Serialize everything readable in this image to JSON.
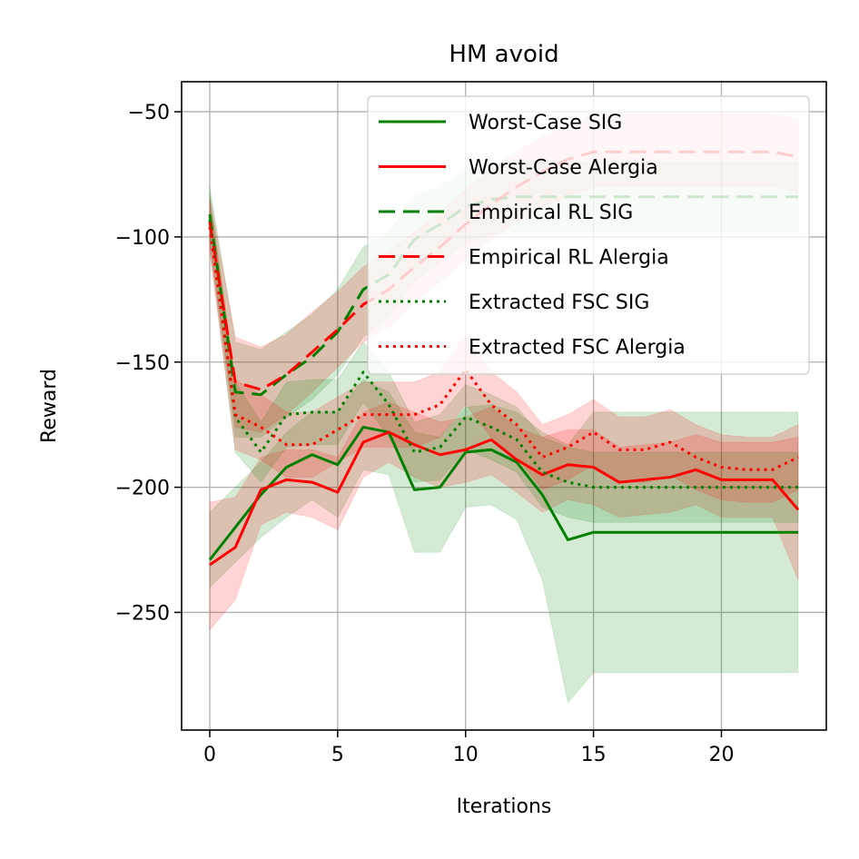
{
  "chart_data": {
    "type": "line",
    "title": "HM avoid",
    "xlabel": "Iterations",
    "ylabel": "Reward",
    "xlim": [
      -1.1,
      24.1
    ],
    "ylim": [
      -297,
      -38
    ],
    "xticks": [
      0,
      5,
      10,
      15,
      20
    ],
    "yticks": [
      -50,
      -100,
      -150,
      -200,
      -250
    ],
    "tick_labels_x": [
      "0",
      "5",
      "10",
      "15",
      "20"
    ],
    "tick_labels_y": [
      "−50",
      "−100",
      "−150",
      "−200",
      "−250"
    ],
    "grid": true,
    "legend_position": "top-right",
    "x": [
      0,
      1,
      2,
      3,
      4,
      5,
      6,
      7,
      8,
      9,
      10,
      11,
      12,
      13,
      14,
      15,
      16,
      17,
      18,
      19,
      20,
      21,
      22,
      23
    ],
    "series": [
      {
        "name": "Worst-Case SIG",
        "color": "#008000",
        "style": "solid",
        "values": [
          -229,
          -216,
          -203,
          -192,
          -187,
          -191,
          -176,
          -178,
          -201,
          -200,
          -186,
          -185,
          -190,
          -203,
          -221,
          -218,
          -218,
          -218,
          -218,
          -218,
          -218,
          -218,
          -218,
          -218
        ],
        "lower": [
          -240,
          -230,
          -220,
          -212,
          -205,
          -212,
          -193,
          -195,
          -226,
          -226,
          -208,
          -207,
          -213,
          -237,
          -286,
          -274,
          -274,
          -274,
          -274,
          -274,
          -274,
          -274,
          -274,
          -274
        ],
        "upper": [
          -210,
          -200,
          -190,
          -178,
          -170,
          -170,
          -157,
          -162,
          -178,
          -180,
          -168,
          -167,
          -170,
          -178,
          -183,
          -170,
          -170,
          -170,
          -170,
          -170,
          -170,
          -170,
          -170,
          -170
        ]
      },
      {
        "name": "Worst-Case Alergia",
        "color": "#ff0000",
        "style": "solid",
        "values": [
          -231,
          -224,
          -201,
          -197,
          -198,
          -202,
          -182,
          -178,
          -183,
          -187,
          -185,
          -181,
          -189,
          -195,
          -191,
          -192,
          -198,
          -197,
          -196,
          -193,
          -197,
          -197,
          -197,
          -209
        ],
        "lower": [
          -257,
          -245,
          -215,
          -210,
          -212,
          -217,
          -196,
          -190,
          -196,
          -200,
          -198,
          -195,
          -202,
          -210,
          -205,
          -207,
          -212,
          -211,
          -210,
          -207,
          -212,
          -212,
          -212,
          -237
        ],
        "upper": [
          -206,
          -204,
          -188,
          -185,
          -185,
          -188,
          -170,
          -166,
          -170,
          -174,
          -172,
          -168,
          -176,
          -180,
          -177,
          -177,
          -184,
          -183,
          -182,
          -179,
          -182,
          -182,
          -182,
          -180
        ]
      },
      {
        "name": "Empirical RL SIG",
        "color": "#008000",
        "style": "dashed",
        "values": [
          -91,
          -162,
          -163,
          -155,
          -148,
          -138,
          -121,
          -115,
          -101,
          -95,
          -88,
          -85,
          -84,
          -84,
          -84,
          -84,
          -84,
          -84,
          -84,
          -84,
          -84,
          -84,
          -84,
          -84
        ],
        "lower": [
          -100,
          -180,
          -180,
          -172,
          -165,
          -155,
          -140,
          -132,
          -118,
          -110,
          -103,
          -99,
          -98,
          -98,
          -98,
          -98,
          -98,
          -98,
          -98,
          -98,
          -98,
          -98,
          -98,
          -98
        ],
        "upper": [
          -80,
          -142,
          -145,
          -138,
          -131,
          -121,
          -104,
          -98,
          -84,
          -80,
          -73,
          -71,
          -70,
          -70,
          -70,
          -70,
          -70,
          -70,
          -70,
          -70,
          -70,
          -70,
          -70,
          -70
        ]
      },
      {
        "name": "Empirical RL Alergia",
        "color": "#ff0000",
        "style": "dashed",
        "values": [
          -94,
          -158,
          -161,
          -155,
          -146,
          -137,
          -127,
          -121,
          -112,
          -104,
          -95,
          -87,
          -80,
          -74,
          -69,
          -66,
          -66,
          -66,
          -66,
          -66,
          -66,
          -66,
          -66,
          -68
        ],
        "lower": [
          -104,
          -176,
          -178,
          -171,
          -162,
          -152,
          -142,
          -136,
          -126,
          -118,
          -109,
          -101,
          -94,
          -88,
          -84,
          -80,
          -80,
          -80,
          -80,
          -80,
          -80,
          -80,
          -80,
          -82
        ],
        "upper": [
          -84,
          -140,
          -144,
          -139,
          -130,
          -122,
          -112,
          -106,
          -98,
          -90,
          -81,
          -73,
          -66,
          -60,
          -55,
          -51,
          -51,
          -51,
          -51,
          -51,
          -51,
          -51,
          -51,
          -53
        ]
      },
      {
        "name": "Extracted FSC SIG",
        "color": "#008000",
        "style": "dotted",
        "values": [
          -93,
          -172,
          -186,
          -171,
          -170,
          -170,
          -154,
          -167,
          -186,
          -184,
          -172,
          -176,
          -181,
          -194,
          -198,
          -200,
          -200,
          -200,
          -200,
          -200,
          -200,
          -200,
          -200,
          -200
        ],
        "lower": [
          -103,
          -186,
          -198,
          -184,
          -183,
          -183,
          -166,
          -180,
          -198,
          -197,
          -185,
          -189,
          -194,
          -208,
          -212,
          -214,
          -214,
          -214,
          -214,
          -214,
          -214,
          -214,
          -214,
          -214
        ],
        "upper": [
          -83,
          -158,
          -174,
          -158,
          -157,
          -157,
          -142,
          -154,
          -174,
          -171,
          -159,
          -163,
          -168,
          -180,
          -184,
          -186,
          -186,
          -186,
          -186,
          -186,
          -186,
          -186,
          -186,
          -186
        ]
      },
      {
        "name": "Extracted FSC Alergia",
        "color": "#ff0000",
        "style": "dotted",
        "values": [
          -96,
          -171,
          -176,
          -183,
          -183,
          -177,
          -171,
          -171,
          -171,
          -167,
          -153,
          -167,
          -175,
          -188,
          -184,
          -178,
          -185,
          -185,
          -182,
          -188,
          -192,
          -193,
          -193,
          -188
        ],
        "lower": [
          -106,
          -185,
          -189,
          -196,
          -196,
          -190,
          -184,
          -184,
          -184,
          -180,
          -167,
          -180,
          -188,
          -201,
          -197,
          -191,
          -198,
          -198,
          -195,
          -201,
          -205,
          -206,
          -206,
          -201
        ],
        "upper": [
          -86,
          -157,
          -163,
          -170,
          -170,
          -164,
          -158,
          -158,
          -158,
          -154,
          -139,
          -154,
          -162,
          -175,
          -171,
          -165,
          -172,
          -172,
          -169,
          -175,
          -179,
          -180,
          -180,
          -175
        ]
      }
    ]
  }
}
